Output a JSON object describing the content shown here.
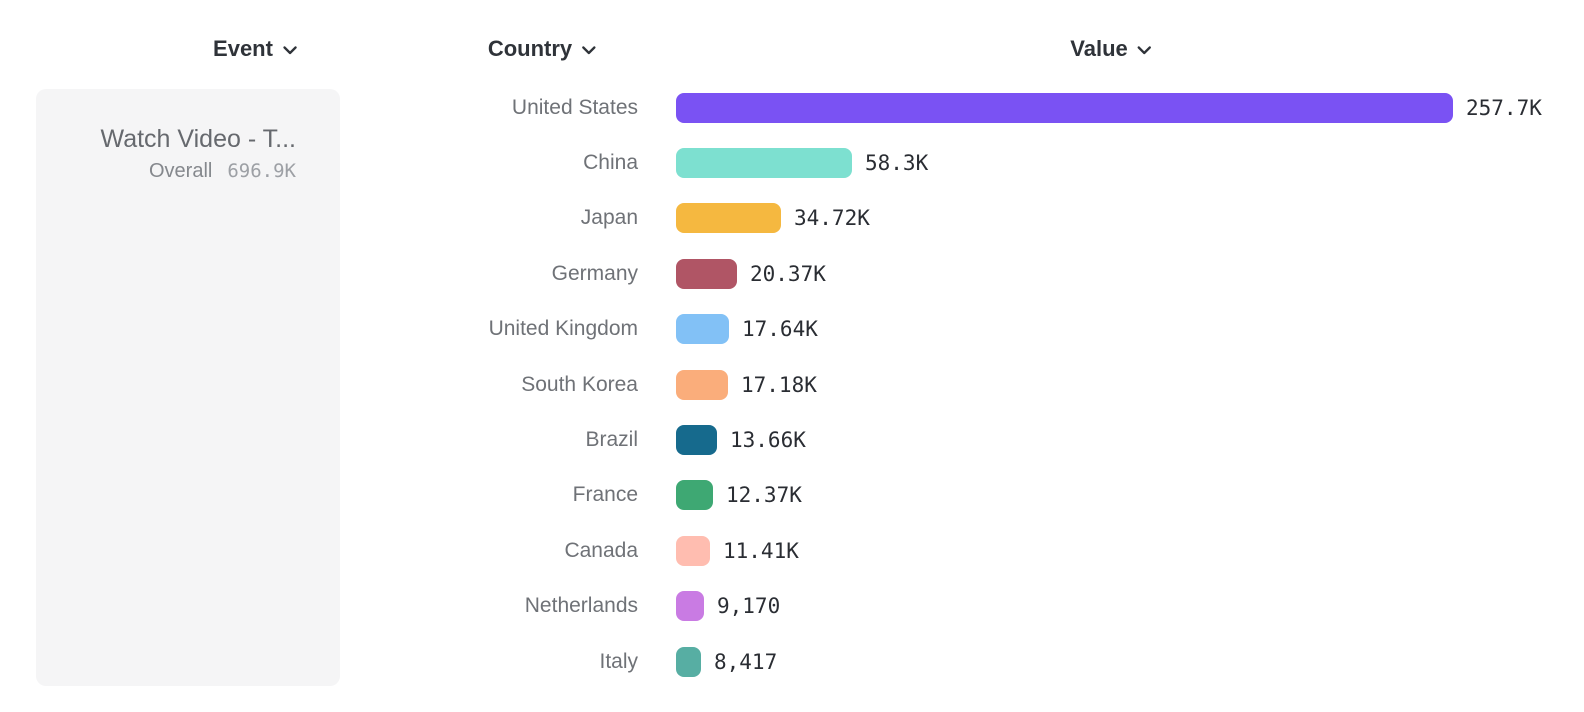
{
  "headers": {
    "event": "Event",
    "country": "Country",
    "value": "Value"
  },
  "event_card": {
    "title": "Watch Video - T...",
    "overall_label": "Overall",
    "overall_value": "696.9K"
  },
  "chart_data": {
    "type": "bar",
    "orientation": "horizontal",
    "title": "",
    "xlabel": "Value",
    "ylabel": "Country",
    "grid": false,
    "legend": false,
    "xlim": [
      0,
      257700
    ],
    "categories": [
      "United States",
      "China",
      "Japan",
      "Germany",
      "United Kingdom",
      "South Korea",
      "Brazil",
      "France",
      "Canada",
      "Netherlands",
      "Italy"
    ],
    "values": [
      257700,
      58300,
      34720,
      20370,
      17640,
      17180,
      13660,
      12370,
      11410,
      9170,
      8417
    ],
    "value_labels": [
      "257.7K",
      "58.3K",
      "34.72K",
      "20.37K",
      "17.64K",
      "17.18K",
      "13.66K",
      "12.37K",
      "11.41K",
      "9,170",
      "8,417"
    ],
    "bar_colors": [
      "#7a52f3",
      "#7de0d0",
      "#f5b840",
      "#b05565",
      "#82c1f6",
      "#faad7b",
      "#166a8d",
      "#3ea873",
      "#ffbdb0",
      "#c97be3",
      "#57aea3"
    ],
    "series_total": {
      "label": "Overall",
      "value_label": "696.9K",
      "value": 696900
    }
  },
  "colors": {
    "background": "#ffffff",
    "panel_background": "#f5f5f6",
    "header_text": "#2f3339",
    "country_label_text": "#6f7277",
    "value_label_text": "#2a2d33"
  }
}
